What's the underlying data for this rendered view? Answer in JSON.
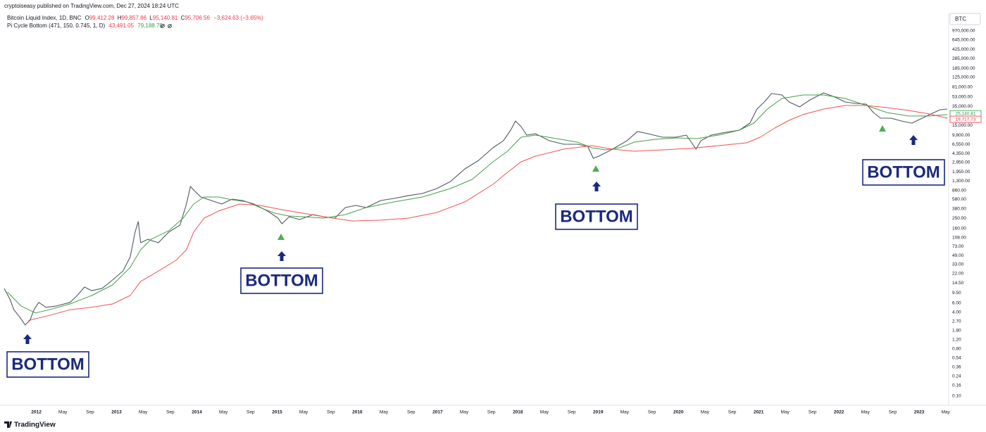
{
  "chart_data": {
    "type": "line",
    "header": {
      "publisher": "cryptoiseasy published on TradingView.com, Dec 27, 2024 18:24 UTC",
      "symbol": "Bitcoin Liquid Index, 1D, BNC",
      "ohlc": [
        {
          "key": "O",
          "value": "99,412.28"
        },
        {
          "key": "H",
          "value": "99,857.86"
        },
        {
          "key": "L",
          "value": "95,140.81"
        },
        {
          "key": "C",
          "value": "95,706.56"
        }
      ],
      "change": "−3,624.63 (−3.65%)",
      "indicator": "Pi Cycle Bottom (471, 150, 0.745, 1, D)",
      "indicator_values": [
        "43,491.05",
        "79,188.78"
      ]
    },
    "symbol_button": "BTC",
    "footer": "TradingView",
    "annotations": [
      "BOTTOM",
      "BOTTOM",
      "BOTTOM",
      "BOTTOM"
    ],
    "log_y": true,
    "grid": false,
    "xlim": [
      2011.6,
      2023.35
    ],
    "ylim": [
      0.069,
      2160000
    ],
    "xticks": [
      2012,
      {
        "value": 2012.33,
        "label": "May"
      },
      {
        "value": 2012.67,
        "label": "Sep"
      },
      2013,
      {
        "value": 2013.33,
        "label": "May"
      },
      {
        "value": 2013.67,
        "label": "Sep"
      },
      2014,
      {
        "value": 2014.33,
        "label": "May"
      },
      {
        "value": 2014.67,
        "label": "Sep"
      },
      2015,
      {
        "value": 2015.33,
        "label": "May"
      },
      {
        "value": 2015.67,
        "label": "Sep"
      },
      2016,
      {
        "value": 2016.33,
        "label": "May"
      },
      {
        "value": 2016.67,
        "label": "Sep"
      },
      2017,
      {
        "value": 2017.33,
        "label": "May"
      },
      {
        "value": 2017.67,
        "label": "Sep"
      },
      2018,
      {
        "value": 2018.33,
        "label": "May"
      },
      {
        "value": 2018.67,
        "label": "Sep"
      },
      2019,
      {
        "value": 2019.33,
        "label": "May"
      },
      {
        "value": 2019.67,
        "label": "Sep"
      },
      2020,
      {
        "value": 2020.33,
        "label": "May"
      },
      {
        "value": 2020.67,
        "label": "Sep"
      },
      2021,
      {
        "value": 2021.33,
        "label": "May"
      },
      {
        "value": 2021.67,
        "label": "Sep"
      },
      2022,
      {
        "value": 2022.33,
        "label": "May"
      },
      {
        "value": 2022.67,
        "label": "Sep"
      },
      2023,
      {
        "value": 2023.33,
        "label": "May"
      }
    ],
    "yticks": [
      {
        "value": 970000,
        "label": "970,000.00"
      },
      {
        "value": 645000,
        "label": "645,000.00"
      },
      {
        "value": 425000,
        "label": "425,000.00"
      },
      {
        "value": 285000,
        "label": "285,000.00"
      },
      {
        "value": 185000,
        "label": "185,000.00"
      },
      {
        "value": 125000,
        "label": "125,000.00"
      },
      {
        "value": 81000,
        "label": "81,000.00"
      },
      {
        "value": 53000,
        "label": "53,000.00"
      },
      {
        "value": 35000,
        "label": "35,000.00"
      },
      {
        "value": 15000,
        "label": "15,000.00"
      },
      {
        "value": 9800,
        "label": "9,800.00"
      },
      {
        "value": 6550,
        "label": "6,550.00"
      },
      {
        "value": 4350,
        "label": "4,350.00"
      },
      {
        "value": 2950,
        "label": "2,950.00"
      },
      {
        "value": 1950,
        "label": "1,950.00"
      },
      {
        "value": 1300,
        "label": "1,300.00"
      },
      {
        "value": 860,
        "label": "860.00"
      },
      {
        "value": 580,
        "label": "580.00"
      },
      {
        "value": 380,
        "label": "380.00"
      },
      {
        "value": 250,
        "label": "250.00"
      },
      {
        "value": 160,
        "label": "160.00"
      },
      {
        "value": 108,
        "label": "108.00"
      },
      {
        "value": 73,
        "label": "73.00"
      },
      {
        "value": 49,
        "label": "49.00"
      },
      {
        "value": 33,
        "label": "33.00"
      },
      {
        "value": 22,
        "label": "22.00"
      },
      {
        "value": 14.5,
        "label": "14.50"
      },
      {
        "value": 9.5,
        "label": "9.50"
      },
      {
        "value": 6,
        "label": "6.00"
      },
      {
        "value": 4,
        "label": "4.00"
      },
      {
        "value": 2.7,
        "label": "2.70"
      },
      {
        "value": 1.8,
        "label": "1.80"
      },
      {
        "value": 1.2,
        "label": "1.20"
      },
      {
        "value": 0.8,
        "label": "0.80"
      },
      {
        "value": 0.54,
        "label": "0.54"
      },
      {
        "value": 0.36,
        "label": "0.36"
      },
      {
        "value": 0.24,
        "label": "0.24"
      },
      {
        "value": 0.16,
        "label": "0.16"
      },
      {
        "value": 0.1,
        "label": "0.10"
      }
    ],
    "price_labels": [
      {
        "value": 25140.81,
        "label": "25,140.81",
        "color": "#2e9e4a"
      },
      {
        "value": 19717.73,
        "label": "19,717.73",
        "color": "#f23645"
      }
    ],
    "series": [
      {
        "color": "#4f5862",
        "x": [
          2011.6,
          2011.67,
          2011.72,
          2011.79,
          2011.86,
          2011.92,
          2011.97,
          2012.03,
          2012.12,
          2012.25,
          2012.42,
          2012.51,
          2012.6,
          2012.69,
          2012.82,
          2012.95,
          2013.08,
          2013.17,
          2013.23,
          2013.27,
          2013.3,
          2013.39,
          2013.52,
          2013.65,
          2013.79,
          2013.87,
          2013.92,
          2013.96,
          2014.05,
          2014.18,
          2014.31,
          2014.44,
          2014.57,
          2014.71,
          2014.88,
          2015.01,
          2015.06,
          2015.15,
          2015.28,
          2015.45,
          2015.58,
          2015.72,
          2015.85,
          2015.98,
          2016.11,
          2016.29,
          2016.46,
          2016.64,
          2016.81,
          2016.99,
          2017.16,
          2017.34,
          2017.51,
          2017.69,
          2017.82,
          2017.91,
          2017.97,
          2018.04,
          2018.11,
          2018.22,
          2018.39,
          2018.57,
          2018.74,
          2018.87,
          2018.94,
          2019.01,
          2019.18,
          2019.36,
          2019.49,
          2019.62,
          2019.8,
          2019.97,
          2020.1,
          2020.22,
          2020.28,
          2020.41,
          2020.59,
          2020.76,
          2020.89,
          2020.98,
          2021.07,
          2021.16,
          2021.29,
          2021.38,
          2021.51,
          2021.64,
          2021.81,
          2021.95,
          2022.08,
          2022.21,
          2022.34,
          2022.43,
          2022.52,
          2022.65,
          2022.78,
          2022.91,
          2023.0,
          2023.13,
          2023.26,
          2023.35
        ],
        "values": [
          11.5,
          7.2,
          4.5,
          3.3,
          2.3,
          2.8,
          4.5,
          6.2,
          5.0,
          5.3,
          6.2,
          8.4,
          12.2,
          10.4,
          11.5,
          16.6,
          24.9,
          46,
          137,
          218,
          86,
          100,
          86,
          137,
          187,
          472,
          1025,
          878,
          644,
          552,
          472,
          587,
          552,
          472,
          347,
          254,
          198,
          270,
          239,
          297,
          270,
          254,
          405,
          444,
          405,
          552,
          605,
          686,
          752,
          933,
          1274,
          2223,
          3228,
          5636,
          7691,
          12218,
          18280,
          14290,
          9840,
          10470,
          7691,
          6577,
          6577,
          5998,
          3540,
          3890,
          5297,
          7691,
          11510,
          10470,
          8974,
          8974,
          9840,
          5297,
          7691,
          9840,
          11140,
          12218,
          16670,
          30970,
          42270,
          61240,
          57540,
          42270,
          34040,
          46340,
          63240,
          52480,
          42270,
          39720,
          38460,
          26550,
          20700,
          20700,
          18280,
          16670,
          19450,
          24210,
          30060,
          30970
        ]
      },
      {
        "color": "#43a047",
        "x": [
          2011.64,
          2011.81,
          2011.99,
          2012.16,
          2012.42,
          2012.69,
          2012.95,
          2013.17,
          2013.3,
          2013.43,
          2013.65,
          2013.83,
          2013.96,
          2014.09,
          2014.27,
          2014.44,
          2014.62,
          2014.79,
          2014.97,
          2015.15,
          2015.32,
          2015.58,
          2015.85,
          2016.11,
          2016.46,
          2016.81,
          2017.16,
          2017.43,
          2017.69,
          2017.87,
          2018.04,
          2018.22,
          2018.48,
          2018.74,
          2018.92,
          2019.09,
          2019.27,
          2019.45,
          2019.71,
          2019.97,
          2020.23,
          2020.5,
          2020.76,
          2020.94,
          2021.11,
          2021.29,
          2021.55,
          2021.81,
          2022.08,
          2022.34,
          2022.6,
          2022.87,
          2023.13,
          2023.35
        ],
        "values": [
          9.8,
          5.3,
          3.9,
          4.5,
          5.8,
          8.4,
          13.4,
          29,
          63,
          100,
          146,
          254,
          472,
          644,
          644,
          569,
          519,
          405,
          316,
          279,
          270,
          254,
          297,
          405,
          519,
          644,
          933,
          1397,
          3034,
          4830,
          8974,
          9840,
          8433,
          7228,
          5636,
          5140,
          5636,
          7228,
          8180,
          8696,
          8433,
          9840,
          12218,
          16670,
          30970,
          49320,
          57540,
          57540,
          49320,
          36220,
          26550,
          22750,
          22750,
          24210
        ]
      },
      {
        "color": "#ef5350",
        "x": [
          2011.9,
          2012.16,
          2012.42,
          2012.69,
          2012.95,
          2013.17,
          2013.3,
          2013.48,
          2013.74,
          2013.87,
          2013.96,
          2014.09,
          2014.27,
          2014.53,
          2014.79,
          2015.06,
          2015.32,
          2015.58,
          2015.94,
          2016.29,
          2016.64,
          2016.99,
          2017.34,
          2017.69,
          2017.87,
          2018.04,
          2018.22,
          2018.57,
          2018.92,
          2019.18,
          2019.45,
          2019.8,
          2020.15,
          2020.5,
          2020.85,
          2021.02,
          2021.2,
          2021.38,
          2021.55,
          2021.81,
          2022.08,
          2022.34,
          2022.6,
          2022.87,
          2023.13,
          2023.35
        ],
        "values": [
          2.8,
          3.5,
          4.5,
          5.0,
          5.8,
          8.4,
          15.6,
          22.6,
          39.6,
          63,
          137,
          254,
          347,
          472,
          444,
          369,
          316,
          270,
          224,
          232,
          254,
          326,
          519,
          1125,
          1905,
          3034,
          3890,
          5297,
          6180,
          5297,
          4830,
          5140,
          5470,
          6180,
          7000,
          8974,
          13430,
          18880,
          24210,
          30970,
          36220,
          36220,
          32960,
          29110,
          24950,
          20700
        ]
      }
    ]
  }
}
